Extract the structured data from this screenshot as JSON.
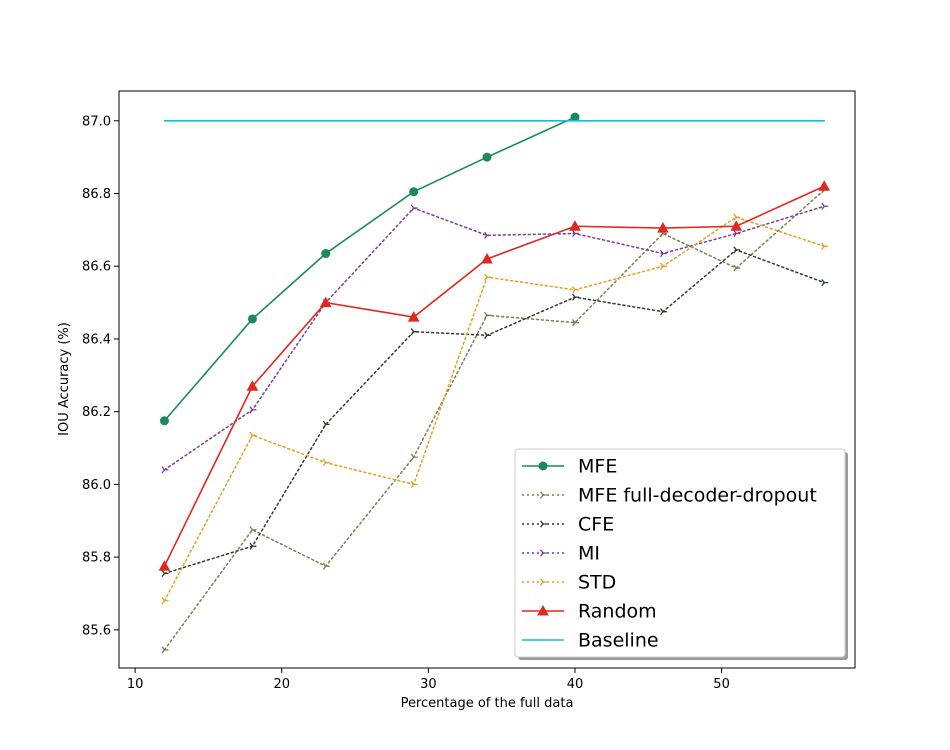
{
  "chart_data": {
    "type": "line",
    "title": "",
    "xlabel": "Percentage of the full data",
    "ylabel": "IOU Accuracy (%)",
    "xlim": [
      8.9,
      59.1
    ],
    "ylim": [
      85.495,
      87.082
    ],
    "xticks": [
      10,
      20,
      30,
      40,
      50
    ],
    "xtick_labels": [
      "10",
      "20",
      "30",
      "40",
      "50"
    ],
    "yticks": [
      85.6,
      85.8,
      86.0,
      86.2,
      86.4,
      86.6,
      86.8,
      87.0
    ],
    "ytick_labels": [
      "85.6",
      "85.8",
      "86.0",
      "86.2",
      "86.4",
      "86.6",
      "86.8",
      "87.0"
    ],
    "grid": false,
    "legend_position": "lower-right",
    "series": [
      {
        "name": "MFE",
        "color": "#1a8a57",
        "dash": "solid",
        "marker": "circle",
        "x": [
          12,
          18,
          23,
          29,
          34,
          40
        ],
        "y": [
          86.175,
          86.455,
          86.635,
          86.805,
          86.9,
          87.01
        ]
      },
      {
        "name": "MFE full-decoder-dropout",
        "color": "#7d7d4d",
        "dash": "dotted",
        "marker": "tri",
        "x": [
          12,
          18,
          23,
          29,
          34,
          40,
          46,
          51,
          57
        ],
        "y": [
          85.545,
          85.875,
          85.775,
          86.075,
          86.465,
          86.445,
          86.69,
          86.595,
          86.81
        ]
      },
      {
        "name": "CFE",
        "color": "#2e3a2e",
        "dash": "dotted",
        "marker": "tri",
        "x": [
          12,
          18,
          23,
          29,
          34,
          40,
          46,
          51,
          57
        ],
        "y": [
          85.755,
          85.83,
          86.165,
          86.42,
          86.41,
          86.515,
          86.475,
          86.645,
          86.555
        ]
      },
      {
        "name": "MI",
        "color": "#7a3ca0",
        "dash": "dotted",
        "marker": "tri",
        "x": [
          12,
          18,
          23,
          29,
          34,
          40,
          46,
          51,
          57
        ],
        "y": [
          86.04,
          86.205,
          86.5,
          86.76,
          86.685,
          86.69,
          86.635,
          86.69,
          86.765
        ]
      },
      {
        "name": "STD",
        "color": "#e6a020",
        "dash": "dotted",
        "marker": "tri",
        "x": [
          12,
          18,
          23,
          29,
          34,
          40,
          46,
          51,
          57
        ],
        "y": [
          85.68,
          86.135,
          86.06,
          86.0,
          86.57,
          86.535,
          86.6,
          86.735,
          86.655
        ]
      },
      {
        "name": "Random",
        "color": "#e0281e",
        "dash": "solid",
        "marker": "triangle",
        "x": [
          12,
          18,
          23,
          29,
          34,
          40,
          46,
          51,
          57
        ],
        "y": [
          85.775,
          86.27,
          86.5,
          86.46,
          86.62,
          86.71,
          86.705,
          86.71,
          86.82
        ]
      },
      {
        "name": "Baseline",
        "color": "#17becf",
        "dash": "solid",
        "marker": "none",
        "x": [
          12,
          57
        ],
        "y": [
          87.0,
          87.0
        ]
      }
    ]
  }
}
